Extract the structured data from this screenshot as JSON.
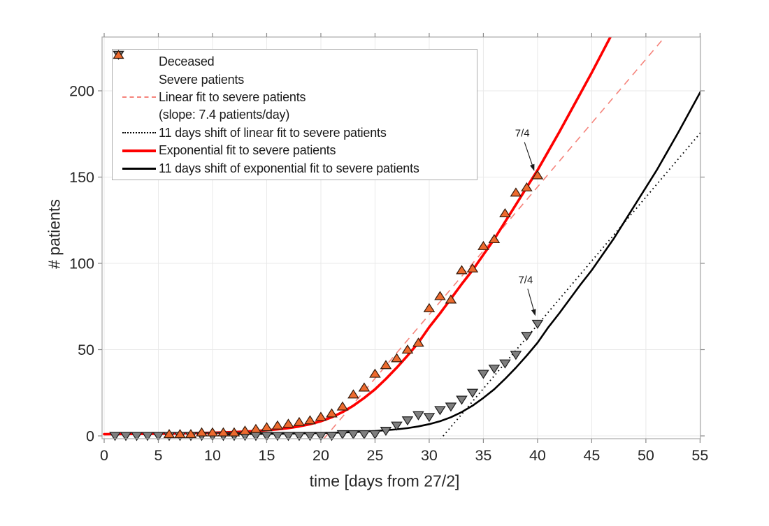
{
  "chart_data": {
    "type": "scatter",
    "title": "",
    "xlabel": "time [days from 27/2]",
    "ylabel": "# patients",
    "x_axis": {
      "min": 0,
      "max": 55,
      "ticks": [
        0,
        5,
        10,
        15,
        20,
        25,
        30,
        35,
        40,
        45,
        50,
        55
      ]
    },
    "y_axis": {
      "min": 0,
      "max": 230,
      "ticks": [
        0,
        50,
        100,
        150,
        200
      ]
    },
    "grid": true,
    "axis_style": {
      "grid_color": "#e9e9e9",
      "border_color": "#ababab",
      "tick_color": "#8a8a8a",
      "text_color": "#262626"
    },
    "legend": {
      "position": "top-left",
      "items": [
        {
          "symbol": "triangle-down-marker",
          "label": "Deceased"
        },
        {
          "symbol": "triangle-up-marker",
          "label": "Severe patients"
        },
        {
          "symbol": "dashed-pink-line",
          "label": "Linear fit to severe patients"
        },
        {
          "symbol": "none",
          "label": "(slope: 7.4 patients/day)"
        },
        {
          "symbol": "dotted-black-line",
          "label": "11 days shift of linear fit to severe patients"
        },
        {
          "symbol": "solid-red-line",
          "label": "Exponential fit to severe patients"
        },
        {
          "symbol": "solid-black-line",
          "label": "11 days shift of exponential fit to severe patients"
        }
      ]
    },
    "series": {
      "deceased": {
        "name": "Deceased",
        "marker": "triangle-down",
        "fill": "#7f7f7f",
        "edge": "#1c1c1c",
        "points": [
          [
            1,
            0
          ],
          [
            2,
            0
          ],
          [
            3,
            0
          ],
          [
            4,
            0
          ],
          [
            5,
            0
          ],
          [
            6,
            0
          ],
          [
            7,
            0
          ],
          [
            8,
            0
          ],
          [
            9,
            0
          ],
          [
            10,
            0
          ],
          [
            11,
            0
          ],
          [
            12,
            0
          ],
          [
            13,
            0
          ],
          [
            14,
            0
          ],
          [
            15,
            0
          ],
          [
            16,
            0
          ],
          [
            17,
            0
          ],
          [
            18,
            0
          ],
          [
            19,
            0
          ],
          [
            20,
            0
          ],
          [
            21,
            0
          ],
          [
            22,
            1
          ],
          [
            23,
            1
          ],
          [
            24,
            1
          ],
          [
            25,
            1
          ],
          [
            26,
            3
          ],
          [
            27,
            6
          ],
          [
            28,
            9
          ],
          [
            29,
            12
          ],
          [
            30,
            11
          ],
          [
            31,
            15
          ],
          [
            32,
            17
          ],
          [
            33,
            21
          ],
          [
            34,
            25
          ],
          [
            35,
            36
          ],
          [
            36,
            39
          ],
          [
            37,
            42
          ],
          [
            38,
            47
          ],
          [
            39,
            58
          ],
          [
            40,
            65
          ]
        ]
      },
      "severe": {
        "name": "Severe patients",
        "marker": "triangle-up",
        "fill": "#ed6a2e",
        "edge": "#33190a",
        "points": [
          [
            6,
            1
          ],
          [
            7,
            1
          ],
          [
            8,
            1
          ],
          [
            9,
            2
          ],
          [
            10,
            2
          ],
          [
            11,
            2
          ],
          [
            12,
            2
          ],
          [
            13,
            3
          ],
          [
            14,
            4
          ],
          [
            15,
            5
          ],
          [
            16,
            6
          ],
          [
            17,
            7
          ],
          [
            18,
            8
          ],
          [
            19,
            9
          ],
          [
            20,
            11
          ],
          [
            21,
            13
          ],
          [
            22,
            17
          ],
          [
            23,
            24
          ],
          [
            24,
            28
          ],
          [
            25,
            36
          ],
          [
            26,
            41
          ],
          [
            27,
            45
          ],
          [
            28,
            50
          ],
          [
            29,
            54
          ],
          [
            30,
            74
          ],
          [
            31,
            81
          ],
          [
            32,
            79
          ],
          [
            33,
            96
          ],
          [
            34,
            97
          ],
          [
            35,
            110
          ],
          [
            36,
            114
          ],
          [
            37,
            129
          ],
          [
            38,
            141
          ],
          [
            39,
            144
          ],
          [
            40,
            151
          ]
        ]
      },
      "linear_fit": {
        "name": "Linear fit to severe patients",
        "style": "dashed",
        "color": "#f5837b",
        "width": 1.6,
        "slope": 7.4,
        "x_intercept": 20.5,
        "slope_label": "(slope: 7.4 patients/day)"
      },
      "linear_fit_shifted": {
        "name": "11 days shift of linear fit to severe patients",
        "style": "dotted",
        "color": "#000000",
        "width": 1.9,
        "slope": 7.4,
        "x_intercept": 31.3,
        "shift_days": 11
      },
      "exp_fit": {
        "name": "Exponential fit to severe patients",
        "style": "solid",
        "color": "#fe0000",
        "width": 3.6,
        "points": [
          [
            0,
            1
          ],
          [
            6,
            1.3
          ],
          [
            10,
            1.8
          ],
          [
            12,
            2.2
          ],
          [
            14,
            2.8
          ],
          [
            16,
            3.8
          ],
          [
            17,
            4.5
          ],
          [
            18,
            5.5
          ],
          [
            19,
            6.8
          ],
          [
            20,
            8.5
          ],
          [
            21,
            10.8
          ],
          [
            22,
            13.8
          ],
          [
            23,
            17.5
          ],
          [
            24,
            22
          ],
          [
            25,
            27
          ],
          [
            26,
            33
          ],
          [
            27,
            39.5
          ],
          [
            28,
            46.5
          ],
          [
            29,
            54
          ],
          [
            30,
            63
          ],
          [
            31,
            71
          ],
          [
            32,
            79.5
          ],
          [
            33,
            88
          ],
          [
            34,
            96
          ],
          [
            35,
            105
          ],
          [
            36,
            114
          ],
          [
            37,
            124
          ],
          [
            38,
            134
          ],
          [
            39,
            144
          ],
          [
            40,
            154
          ],
          [
            41,
            165
          ],
          [
            42,
            176
          ],
          [
            43,
            187.5
          ],
          [
            44,
            199
          ],
          [
            45,
            210.5
          ],
          [
            46,
            222.5
          ],
          [
            47,
            234.5
          ],
          [
            47.5,
            241
          ]
        ]
      },
      "exp_fit_shifted": {
        "name": "11 days shift of exponential fit to severe patients",
        "style": "solid",
        "color": "#000000",
        "width": 2.6,
        "shift_days": 11
      }
    },
    "annotations": [
      {
        "label": "7/4",
        "text_t": 38.6,
        "text_v": 175.5,
        "tip_t": 39.7,
        "tip_v": 153.5
      },
      {
        "label": "7/4",
        "text_t": 38.9,
        "text_v": 90.5,
        "tip_t": 39.8,
        "tip_v": 69.5
      }
    ]
  }
}
